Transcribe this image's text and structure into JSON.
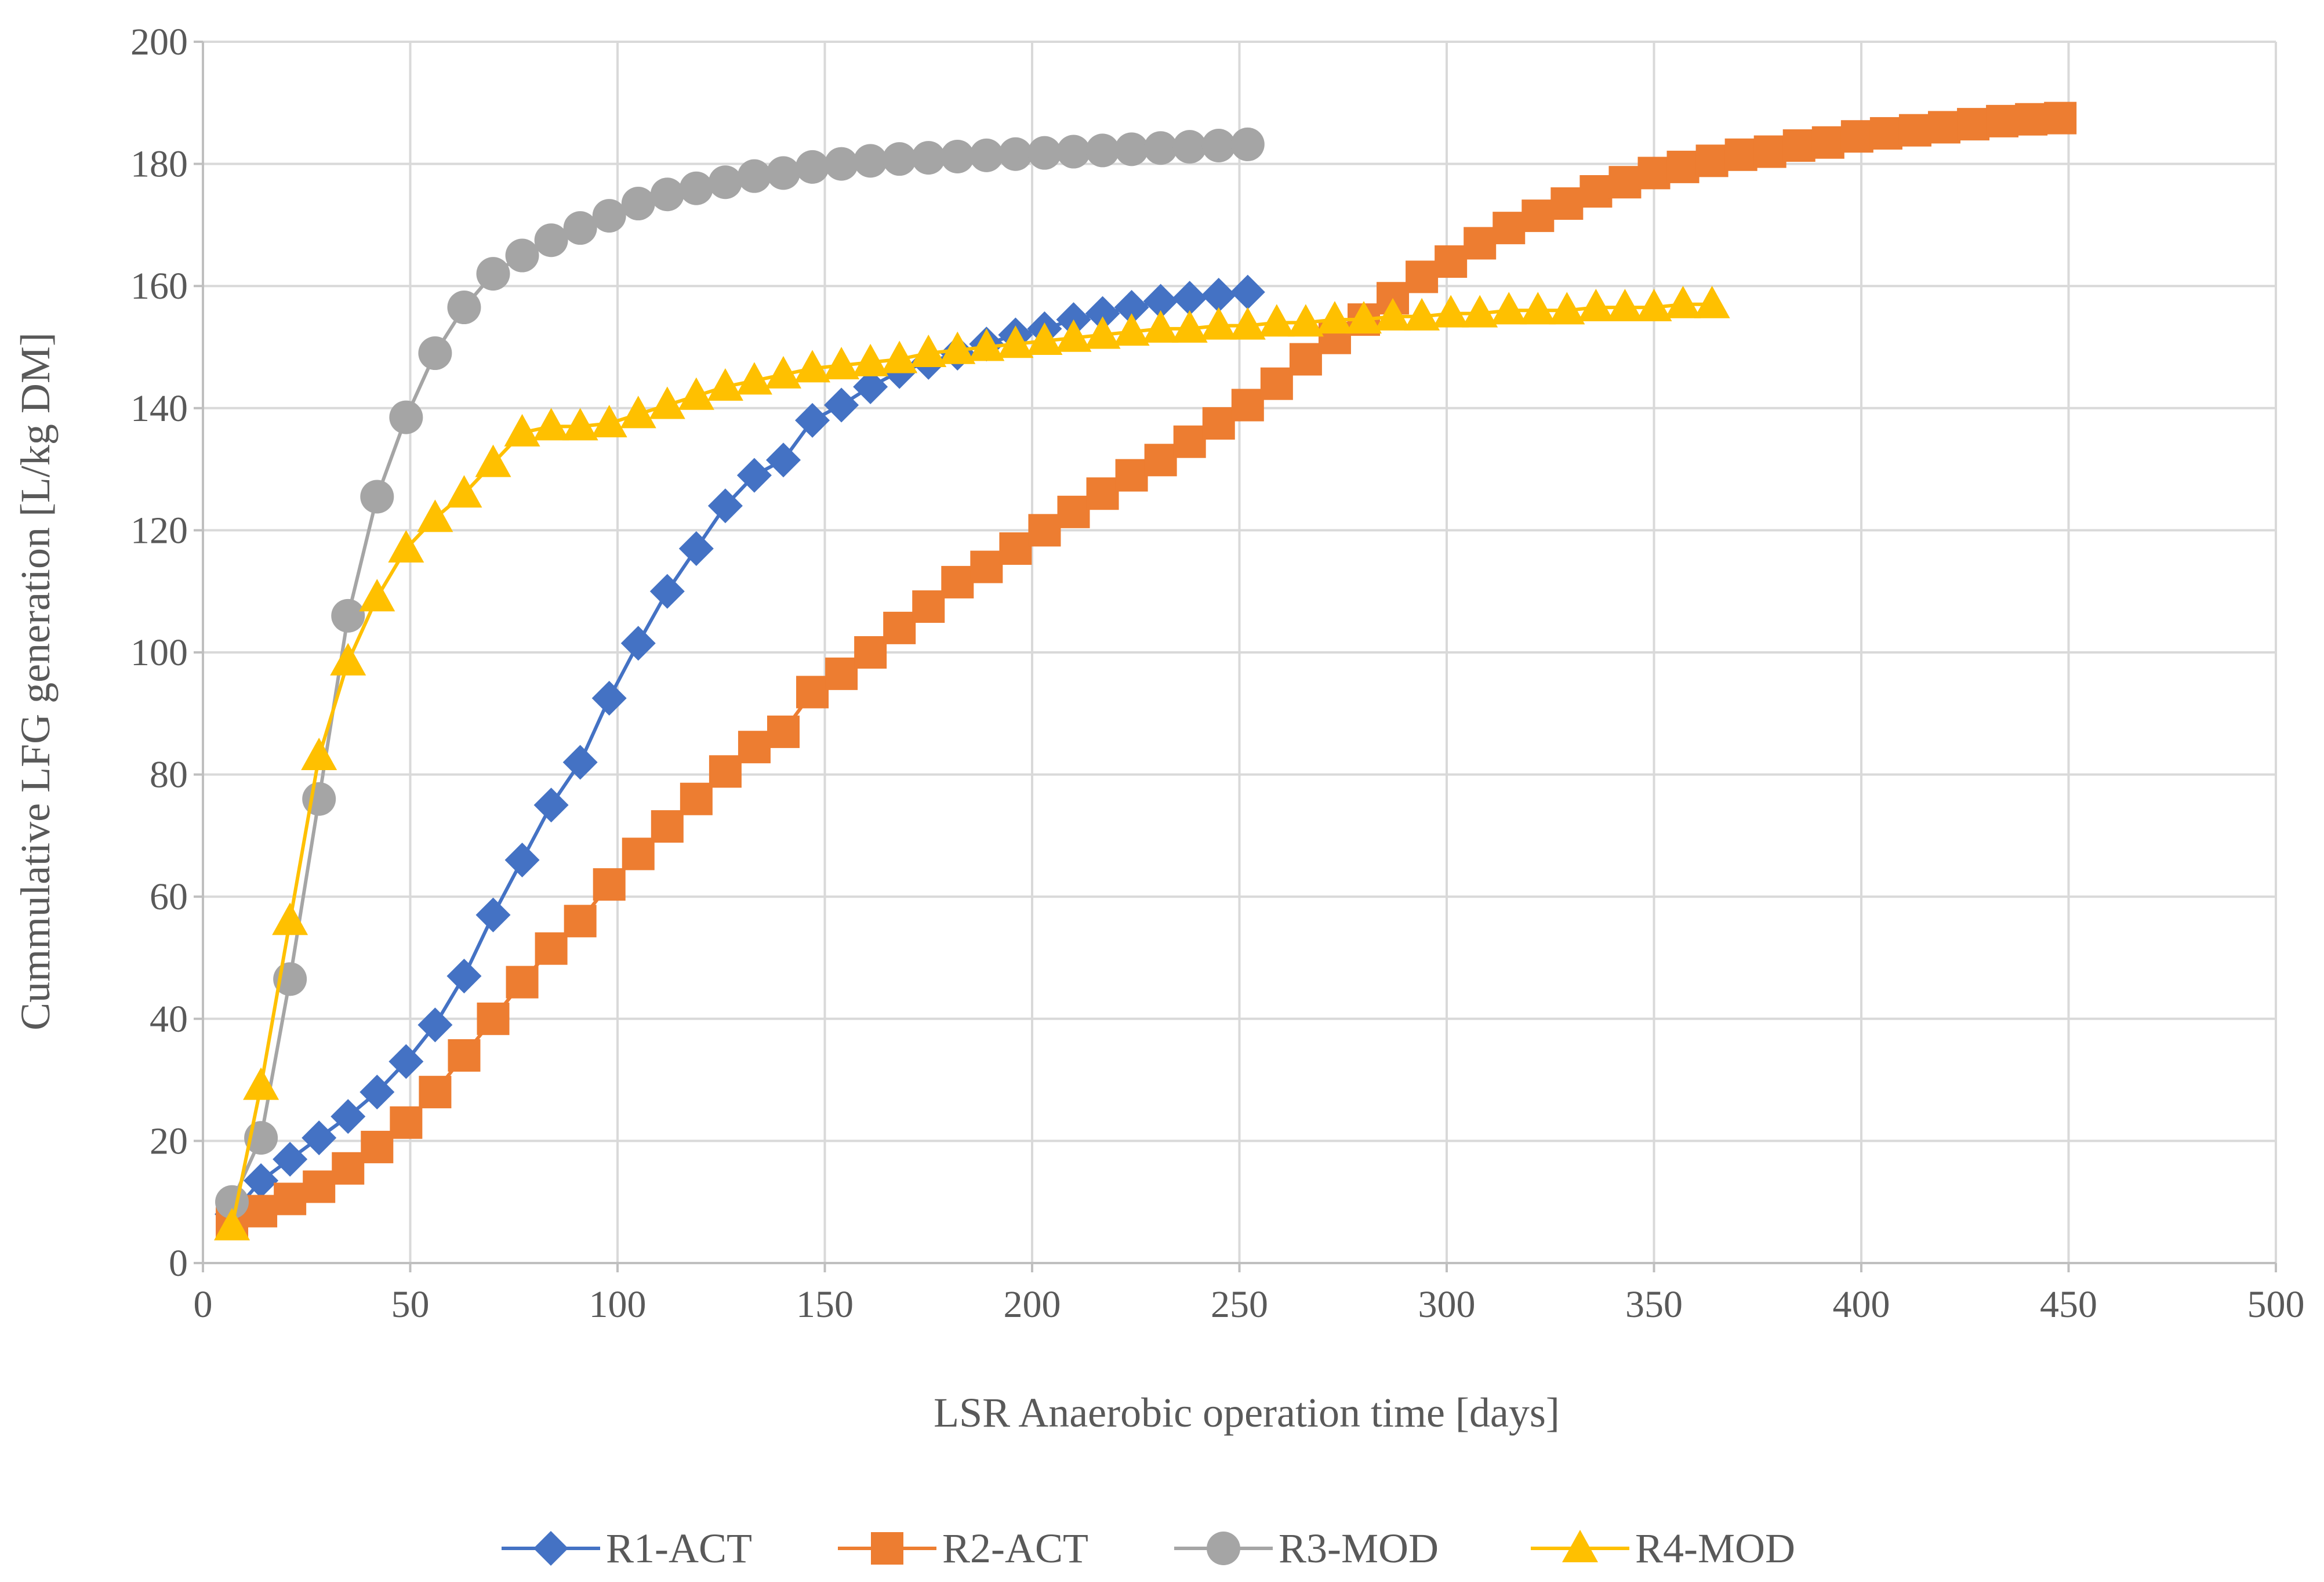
{
  "chart_data": {
    "type": "line",
    "title": "",
    "xlabel": "LSR Anaerobic operation time [days]",
    "ylabel": "Cummulative LFG generation [L/kg DM]",
    "xlim": [
      0,
      500
    ],
    "ylim": [
      0,
      200
    ],
    "x_ticks": [
      0,
      50,
      100,
      150,
      200,
      250,
      300,
      350,
      400,
      450,
      500
    ],
    "y_ticks": [
      0,
      20,
      40,
      60,
      80,
      100,
      120,
      140,
      160,
      180,
      200
    ],
    "grid": true,
    "legend_position": "bottom",
    "series": [
      {
        "name": "R1-ACT",
        "color": "#4472C4",
        "marker": "diamond",
        "x": [
          7,
          14,
          21,
          28,
          35,
          42,
          49,
          56,
          63,
          70,
          77,
          84,
          91,
          98,
          105,
          112,
          119,
          126,
          133,
          140,
          147,
          154,
          161,
          168,
          175,
          182,
          189,
          196,
          203,
          210,
          217,
          224,
          231,
          238,
          245,
          252
        ],
        "y": [
          8,
          13.5,
          17,
          20.5,
          24,
          28,
          33,
          39,
          47,
          57,
          66,
          75,
          82,
          92.5,
          101.5,
          110,
          117,
          124,
          129,
          131.5,
          138,
          140.5,
          143.5,
          146,
          147.5,
          149,
          150.5,
          152,
          153,
          154.5,
          155.5,
          156.5,
          157.5,
          158,
          158.5,
          159
        ]
      },
      {
        "name": "R2-ACT",
        "color": "#ED7D31",
        "marker": "square",
        "x": [
          7,
          14,
          21,
          28,
          35,
          42,
          49,
          56,
          63,
          70,
          77,
          84,
          91,
          98,
          105,
          112,
          119,
          126,
          133,
          140,
          147,
          154,
          161,
          168,
          175,
          182,
          189,
          196,
          203,
          210,
          217,
          224,
          231,
          238,
          245,
          252,
          259,
          266,
          273,
          280,
          287,
          294,
          301,
          308,
          315,
          322,
          329,
          336,
          343,
          350,
          357,
          364,
          371,
          378,
          385,
          392,
          399,
          406,
          413,
          420,
          427,
          434,
          441,
          448
        ],
        "y": [
          6.5,
          8.5,
          10.5,
          12.5,
          15.5,
          19,
          23,
          28,
          34,
          40,
          46,
          51.5,
          56,
          62,
          67,
          71.5,
          76,
          80.5,
          84.5,
          87,
          93.5,
          96.5,
          100,
          104,
          107.5,
          111.5,
          114,
          117,
          120,
          123,
          126,
          129,
          131.5,
          134.5,
          137.5,
          140.5,
          144,
          148,
          151.5,
          154.5,
          158,
          161.5,
          164,
          167,
          169.5,
          171.5,
          173.5,
          175.5,
          177,
          178.5,
          179.5,
          180.5,
          181.5,
          182,
          183,
          183.5,
          184.5,
          185,
          185.5,
          186,
          186.5,
          187,
          187.3,
          187.5
        ]
      },
      {
        "name": "R3-MOD",
        "color": "#A5A5A5",
        "marker": "circle",
        "x": [
          7,
          14,
          21,
          28,
          35,
          42,
          49,
          56,
          63,
          70,
          77,
          84,
          91,
          98,
          105,
          112,
          119,
          126,
          133,
          140,
          147,
          154,
          161,
          168,
          175,
          182,
          189,
          196,
          203,
          210,
          217,
          224,
          231,
          238,
          245,
          252
        ],
        "y": [
          10,
          20.5,
          46.5,
          76,
          106,
          125.5,
          138.5,
          149,
          156.5,
          162,
          165,
          167.5,
          169.5,
          171.5,
          173.5,
          175,
          176,
          177,
          178,
          178.5,
          179.5,
          180,
          180.5,
          180.8,
          181,
          181.2,
          181.4,
          181.6,
          181.8,
          182,
          182.2,
          182.4,
          182.6,
          182.8,
          183,
          183.2
        ]
      },
      {
        "name": "R4-MOD",
        "color": "#FFC000",
        "marker": "triangle",
        "x": [
          7,
          14,
          21,
          28,
          35,
          42,
          49,
          56,
          63,
          70,
          77,
          84,
          91,
          98,
          105,
          112,
          119,
          126,
          133,
          140,
          147,
          154,
          161,
          168,
          175,
          182,
          189,
          196,
          203,
          210,
          217,
          224,
          231,
          238,
          245,
          252,
          259,
          266,
          273,
          280,
          287,
          294,
          301,
          308,
          315,
          322,
          329,
          336,
          343,
          350,
          357,
          364
        ],
        "y": [
          6,
          29,
          56,
          83,
          98.5,
          109,
          117,
          122,
          126,
          131,
          136,
          137,
          137,
          137.5,
          139,
          140.5,
          142,
          143.5,
          144.5,
          145.5,
          146.5,
          147,
          147.5,
          148,
          149,
          149.5,
          150,
          150.5,
          151,
          151.5,
          152,
          152.5,
          153,
          153,
          153.5,
          153.5,
          154,
          154,
          154.5,
          154.5,
          155,
          155,
          155.5,
          155.5,
          156,
          156,
          156,
          156.5,
          156.5,
          156.5,
          157,
          157
        ]
      }
    ]
  }
}
